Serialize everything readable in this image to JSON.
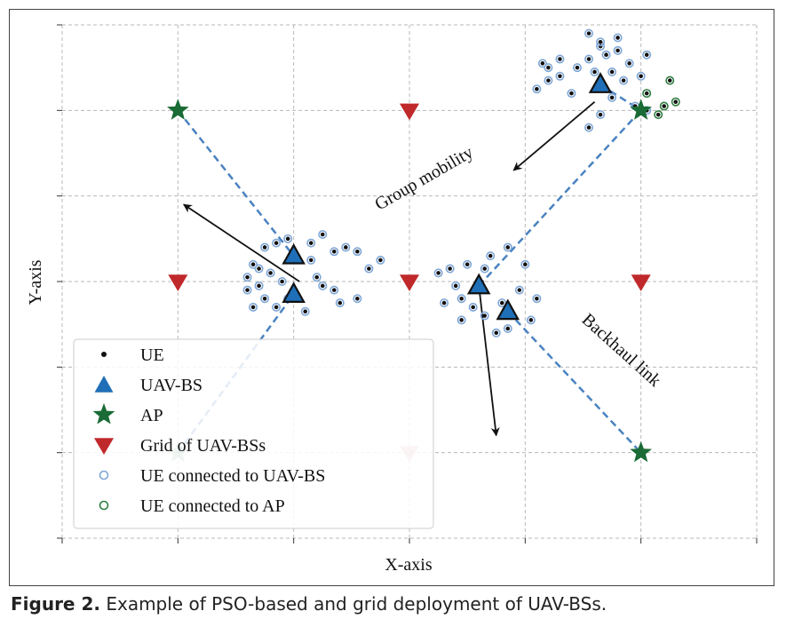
{
  "caption": {
    "label": "Figure 2.",
    "text": "Example of PSO-based and grid deployment of UAV-BSs."
  },
  "chart_data": {
    "type": "scatter",
    "xlabel": "X-axis",
    "ylabel": "Y-axis",
    "xlim": [
      0,
      6
    ],
    "ylim": [
      0,
      6
    ],
    "grid": true,
    "legend_placement": "lower-left",
    "colors": {
      "ue": "#111111",
      "uav": "#1f6fb8",
      "ap": "#1a6b35",
      "grid_uav": "#c0292b",
      "link": "#4a82c0",
      "ue_ring_uav": "#7ea6d6",
      "ue_ring_ap": "#2e7d3f"
    },
    "legend": [
      {
        "key": "ue",
        "label": "UE"
      },
      {
        "key": "uav",
        "label": "UAV-BS"
      },
      {
        "key": "ap",
        "label": "AP"
      },
      {
        "key": "grid",
        "label": "Grid of UAV-BSs"
      },
      {
        "key": "ue_uav",
        "label": "UE connected to UAV-BS"
      },
      {
        "key": "ue_ap",
        "label": "UE connected to AP"
      }
    ],
    "annotations": [
      {
        "text": "Group mobility",
        "x": 3.15,
        "y": 4.15,
        "angle": -30
      },
      {
        "text": "Backhaul link",
        "x": 4.8,
        "y": 2.15,
        "angle": 42
      }
    ],
    "ap": [
      [
        1,
        5
      ],
      [
        5,
        5
      ],
      [
        1,
        1
      ],
      [
        5,
        1
      ]
    ],
    "grid_uav": [
      [
        1,
        3
      ],
      [
        3,
        3
      ],
      [
        5,
        3
      ],
      [
        3,
        5
      ],
      [
        3,
        1
      ]
    ],
    "uav": [
      [
        2,
        3.3
      ],
      [
        2,
        2.85
      ],
      [
        4.65,
        5.3
      ],
      [
        3.6,
        2.95
      ],
      [
        3.85,
        2.65
      ]
    ],
    "links": [
      [
        [
          1,
          5
        ],
        [
          2,
          3.3
        ]
      ],
      [
        [
          1,
          1
        ],
        [
          2,
          2.85
        ]
      ],
      [
        [
          4.65,
          5.3
        ],
        [
          5,
          5
        ]
      ],
      [
        [
          3.6,
          2.95
        ],
        [
          5,
          5
        ]
      ],
      [
        [
          3.85,
          2.65
        ],
        [
          5,
          1
        ]
      ]
    ],
    "arrows": [
      {
        "from": [
          4.6,
          5.1
        ],
        "to": [
          3.9,
          4.3
        ]
      },
      {
        "from": [
          2.05,
          3.0
        ],
        "to": [
          1.05,
          3.9
        ]
      },
      {
        "from": [
          3.6,
          2.95
        ],
        "to": [
          3.75,
          1.2
        ]
      }
    ],
    "ue_uav": [
      [
        1.65,
        3.2
      ],
      [
        1.75,
        3.4
      ],
      [
        1.85,
        3.45
      ],
      [
        1.6,
        2.9
      ],
      [
        1.7,
        2.95
      ],
      [
        1.8,
        3.1
      ],
      [
        1.9,
        3.0
      ],
      [
        1.75,
        2.8
      ],
      [
        1.85,
        2.7
      ],
      [
        1.65,
        2.7
      ],
      [
        1.95,
        3.5
      ],
      [
        2.15,
        3.45
      ],
      [
        2.25,
        3.55
      ],
      [
        2.35,
        3.35
      ],
      [
        2.15,
        3.25
      ],
      [
        2.2,
        3.05
      ],
      [
        2.25,
        2.95
      ],
      [
        2.35,
        2.9
      ],
      [
        2.4,
        2.75
      ],
      [
        2.55,
        2.8
      ],
      [
        2.65,
        3.15
      ],
      [
        2.75,
        3.25
      ],
      [
        2.55,
        3.35
      ],
      [
        1.6,
        3.05
      ],
      [
        1.95,
        2.8
      ],
      [
        2.45,
        3.4
      ],
      [
        1.7,
        3.15
      ],
      [
        2.1,
        2.65
      ],
      [
        3.25,
        3.1
      ],
      [
        3.35,
        3.15
      ],
      [
        3.5,
        3.2
      ],
      [
        3.65,
        3.15
      ],
      [
        3.3,
        2.75
      ],
      [
        3.45,
        2.8
      ],
      [
        3.55,
        2.7
      ],
      [
        3.45,
        2.55
      ],
      [
        3.65,
        2.6
      ],
      [
        3.8,
        2.75
      ],
      [
        3.95,
        2.9
      ],
      [
        3.7,
        3.3
      ],
      [
        3.85,
        3.4
      ],
      [
        4.0,
        3.2
      ],
      [
        3.75,
        2.4
      ],
      [
        3.85,
        2.45
      ],
      [
        4.05,
        2.55
      ],
      [
        4.1,
        2.8
      ],
      [
        3.4,
        2.95
      ],
      [
        4.1,
        5.25
      ],
      [
        4.2,
        5.35
      ],
      [
        4.3,
        5.4
      ],
      [
        4.15,
        5.55
      ],
      [
        4.3,
        5.6
      ],
      [
        4.45,
        5.5
      ],
      [
        4.55,
        5.6
      ],
      [
        4.65,
        5.75
      ],
      [
        4.8,
        5.7
      ],
      [
        4.9,
        5.55
      ],
      [
        5.05,
        5.65
      ],
      [
        4.75,
        5.45
      ],
      [
        4.85,
        5.35
      ],
      [
        5.0,
        5.4
      ],
      [
        4.6,
        5.45
      ],
      [
        4.75,
        5.15
      ],
      [
        4.65,
        4.95
      ],
      [
        4.55,
        4.8
      ],
      [
        4.95,
        5.05
      ],
      [
        5.05,
        5.0
      ],
      [
        4.2,
        5.5
      ],
      [
        4.4,
        5.2
      ],
      [
        4.8,
        5.85
      ],
      [
        4.55,
        5.9
      ],
      [
        4.65,
        5.8
      ],
      [
        4.7,
        5.65
      ]
    ],
    "ue_ap": [
      [
        5.05,
        5.2
      ],
      [
        5.25,
        5.35
      ],
      [
        5.2,
        5.05
      ],
      [
        5.15,
        4.95
      ],
      [
        5.3,
        5.1
      ]
    ]
  }
}
